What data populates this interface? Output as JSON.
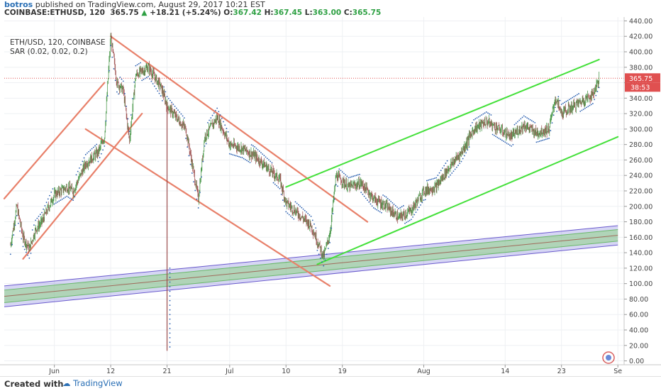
{
  "header": {
    "author": "botros",
    "published_text": "published on TradingView.com, August 29, 2017 10:21 EST",
    "symbol": "COINBASE:ETHUSD, 120",
    "price": "365.75",
    "change": "+18.21 (+5.24%)",
    "o_label": "O:",
    "o_value": "367.42",
    "h_label": "H:",
    "h_value": "367.45",
    "l_label": "L:",
    "l_value": "363.00",
    "c_label": "C:",
    "c_value": "365.75"
  },
  "legend": {
    "line1": "ETH/USD, 120, COINBASE",
    "line2": "SAR (0.02, 0.02, 0.2)"
  },
  "footer": {
    "created_with": "Created with",
    "brand": "TradingView"
  },
  "colors": {
    "candle_up": "#3a8f3a",
    "candle_down": "#9a4a4a",
    "sar": "#2a5fb0",
    "trend_red": "#e8806a",
    "trend_green": "#44e03a",
    "band_outer": "#9898d8",
    "band_inner": "#9ad89a",
    "last_price": "#e05050"
  },
  "chart_data": {
    "type": "candlestick",
    "symbol": "ETH/USD",
    "interval": "120",
    "exchange": "COINBASE",
    "x_ticks": [
      "Jun",
      "12",
      "21",
      "Jul",
      "10",
      "19",
      "Aug",
      "14",
      "23",
      "Se"
    ],
    "y_ticks": [
      "440.00",
      "420.00",
      "400.00",
      "380.00",
      "360.00",
      "340.00",
      "320.00",
      "300.00",
      "280.00",
      "260.00",
      "240.00",
      "220.00",
      "200.00",
      "180.00",
      "160.00",
      "140.00",
      "120.00",
      "100.00",
      "80.00",
      "60.00",
      "40.00",
      "20.00",
      "0.00"
    ],
    "ylim": [
      -5,
      445
    ],
    "last_price_label": "365.75",
    "last_price": 365.75,
    "countdown_label": "38:53",
    "price_path": [
      {
        "t": "May 27",
        "v": 150
      },
      {
        "t": "May 28",
        "v": 200
      },
      {
        "t": "May 29",
        "v": 160
      },
      {
        "t": "May 30",
        "v": 145
      },
      {
        "t": "May 31",
        "v": 170
      },
      {
        "t": "Jun 1",
        "v": 180
      },
      {
        "t": "Jun 3",
        "v": 215
      },
      {
        "t": "Jun 5",
        "v": 225
      },
      {
        "t": "Jun 6",
        "v": 220
      },
      {
        "t": "Jun 8",
        "v": 255
      },
      {
        "t": "Jun 10",
        "v": 270
      },
      {
        "t": "Jun 11",
        "v": 290
      },
      {
        "t": "Jun 12",
        "v": 420
      },
      {
        "t": "Jun 13",
        "v": 360
      },
      {
        "t": "Jun 14",
        "v": 350
      },
      {
        "t": "Jun 15",
        "v": 285
      },
      {
        "t": "Jun 16",
        "v": 370
      },
      {
        "t": "Jun 18",
        "v": 380
      },
      {
        "t": "Jun 20",
        "v": 355
      },
      {
        "t": "Jun 21",
        "v": 330
      },
      {
        "t": "Jun 22",
        "v": 320
      },
      {
        "t": "Jun 24",
        "v": 300
      },
      {
        "t": "Jun 26",
        "v": 210
      },
      {
        "t": "Jun 27",
        "v": 290
      },
      {
        "t": "Jun 29",
        "v": 315
      },
      {
        "t": "Jul 1",
        "v": 280
      },
      {
        "t": "Jul 3",
        "v": 275
      },
      {
        "t": "Jul 5",
        "v": 265
      },
      {
        "t": "Jul 7",
        "v": 250
      },
      {
        "t": "Jul 9",
        "v": 235
      },
      {
        "t": "Jul 10",
        "v": 205
      },
      {
        "t": "Jul 12",
        "v": 190
      },
      {
        "t": "Jul 14",
        "v": 175
      },
      {
        "t": "Jul 16",
        "v": 135
      },
      {
        "t": "Jul 17",
        "v": 165
      },
      {
        "t": "Jul 18",
        "v": 240
      },
      {
        "t": "Jul 20",
        "v": 225
      },
      {
        "t": "Jul 22",
        "v": 230
      },
      {
        "t": "Jul 24",
        "v": 210
      },
      {
        "t": "Jul 26",
        "v": 200
      },
      {
        "t": "Jul 28",
        "v": 185
      },
      {
        "t": "Jul 30",
        "v": 195
      },
      {
        "t": "Aug 1",
        "v": 220
      },
      {
        "t": "Aug 3",
        "v": 225
      },
      {
        "t": "Aug 5",
        "v": 250
      },
      {
        "t": "Aug 7",
        "v": 270
      },
      {
        "t": "Aug 9",
        "v": 300
      },
      {
        "t": "Aug 11",
        "v": 310
      },
      {
        "t": "Aug 13",
        "v": 300
      },
      {
        "t": "Aug 15",
        "v": 290
      },
      {
        "t": "Aug 17",
        "v": 305
      },
      {
        "t": "Aug 19",
        "v": 295
      },
      {
        "t": "Aug 21",
        "v": 300
      },
      {
        "t": "Aug 22",
        "v": 340
      },
      {
        "t": "Aug 23",
        "v": 320
      },
      {
        "t": "Aug 25",
        "v": 330
      },
      {
        "t": "Aug 27",
        "v": 340
      },
      {
        "t": "Aug 28",
        "v": 345
      },
      {
        "t": "Aug 29",
        "v": 365.75
      }
    ],
    "wick_low": {
      "t": "Jun 21",
      "v": 13
    },
    "trendlines": [
      {
        "name": "red-upper-jun",
        "color": "trend_red",
        "points": [
          {
            "t": "May 26",
            "v": 210
          },
          {
            "t": "Jun 11",
            "v": 360
          }
        ]
      },
      {
        "name": "red-lower-jun",
        "color": "trend_red",
        "points": [
          {
            "t": "May 29",
            "v": 132
          },
          {
            "t": "Jun 17",
            "v": 320
          }
        ]
      },
      {
        "name": "red-desc-upper",
        "color": "trend_red",
        "points": [
          {
            "t": "Jun 12",
            "v": 420
          },
          {
            "t": "Jul 23",
            "v": 180
          }
        ]
      },
      {
        "name": "red-desc-lower",
        "color": "trend_red",
        "points": [
          {
            "t": "Jun 8",
            "v": 300
          },
          {
            "t": "Jul 17",
            "v": 97
          }
        ]
      },
      {
        "name": "green-upper",
        "color": "trend_green",
        "points": [
          {
            "t": "Jul 10",
            "v": 225
          },
          {
            "t": "Aug 29",
            "v": 390
          }
        ]
      },
      {
        "name": "green-lower",
        "color": "trend_green",
        "points": [
          {
            "t": "Jul 15",
            "v": 125
          },
          {
            "t": "Sep 1",
            "v": 290
          }
        ]
      }
    ],
    "band": {
      "start": {
        "t": "May 26",
        "lower": 70,
        "upper": 97
      },
      "end": {
        "t": "Sep 1",
        "lower": 150,
        "upper": 175
      }
    }
  }
}
